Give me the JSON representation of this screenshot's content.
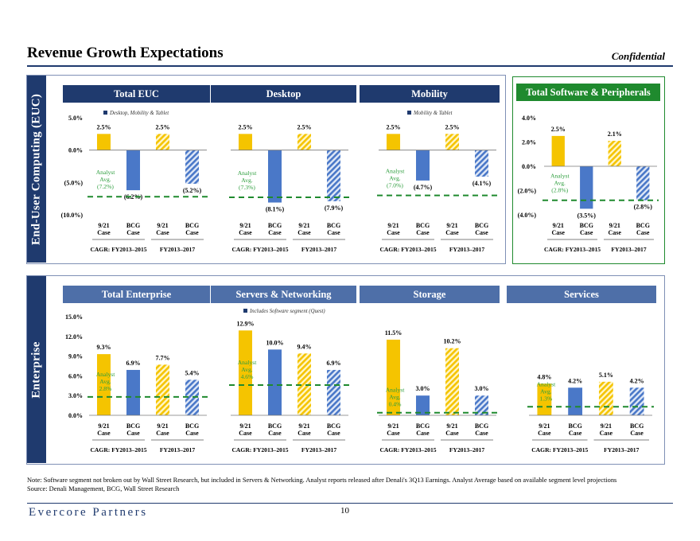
{
  "header": {
    "title": "Revenue Growth Expectations",
    "confidential": "Confidential"
  },
  "sections": {
    "euc_label": "End-User Computing (EUC)",
    "enterprise_label": "Enterprise"
  },
  "colors": {
    "navy": "#1f3a6e",
    "yellow": "#f5c400",
    "blue": "#4a78c8",
    "green": "#1f8a2e",
    "analyst_text": "#2e9e3e"
  },
  "chart_data": [
    {
      "type": "bar",
      "title": "Total EUC",
      "legend": "Desktop, Mobility & Tablet",
      "categories": [
        "9/21 Case",
        "BCG Case",
        "9/21 Case",
        "BCG Case"
      ],
      "groups": [
        "CAGR: FY2013–2015",
        "FY2013–2017"
      ],
      "values": [
        2.5,
        -6.2,
        2.5,
        -5.2
      ],
      "value_labels": [
        "2.5%",
        "(6.2%)",
        "2.5%",
        "(5.2%)"
      ],
      "analyst_avg": -7.2,
      "analyst_label": [
        "Analyst",
        "Avg.",
        "(7.2%)"
      ],
      "ylim": [
        -10,
        5
      ],
      "yticks": [
        5,
        0,
        -5,
        -10
      ],
      "ytick_labels": [
        "5.0%",
        "0.0%",
        "(5.0%)",
        "(10.0%)"
      ]
    },
    {
      "type": "bar",
      "title": "Desktop",
      "legend": "",
      "categories": [
        "9/21 Case",
        "BCG Case",
        "9/21 Case",
        "BCG Case"
      ],
      "groups": [
        "CAGR: FY2013–2015",
        "FY2013–2017"
      ],
      "values": [
        2.5,
        -8.1,
        2.5,
        -7.9
      ],
      "value_labels": [
        "2.5%",
        "(8.1%)",
        "2.5%",
        "(7.9%)"
      ],
      "analyst_avg": -7.3,
      "analyst_label": [
        "Analyst",
        "Avg.",
        "(7.3%)"
      ],
      "ylim": [
        -10,
        5
      ],
      "yticks": [],
      "ytick_labels": []
    },
    {
      "type": "bar",
      "title": "Mobility",
      "legend": "Mobility & Tablet",
      "categories": [
        "9/21 Case",
        "BCG Case",
        "9/21 Case",
        "BCG Case"
      ],
      "groups": [
        "CAGR: FY2013–2015",
        "FY2013–2017"
      ],
      "values": [
        2.5,
        -4.7,
        2.5,
        -4.1
      ],
      "value_labels": [
        "2.5%",
        "(4.7%)",
        "2.5%",
        "(4.1%)"
      ],
      "analyst_avg": -7.0,
      "analyst_label": [
        "Analyst",
        "Avg.",
        "(7.0%)"
      ],
      "ylim": [
        -10,
        5
      ],
      "yticks": [],
      "ytick_labels": []
    },
    {
      "type": "bar",
      "title": "Total Software & Peripherals",
      "legend": "",
      "categories": [
        "9/21 Case",
        "BCG Case",
        "9/21 Case",
        "BCG Case"
      ],
      "groups": [
        "CAGR: FY2013–2015",
        "FY2013–2017"
      ],
      "values": [
        2.5,
        -3.5,
        2.1,
        -2.8
      ],
      "value_labels": [
        "2.5%",
        "(3.5%)",
        "2.1%",
        "(2.8%)"
      ],
      "analyst_avg": -2.8,
      "analyst_label": [
        "Analyst",
        "Avg.",
        "(2.8%)"
      ],
      "ylim": [
        -4,
        4
      ],
      "yticks": [
        4,
        2,
        0,
        -2,
        -4
      ],
      "ytick_labels": [
        "4.0%",
        "2.0%",
        "0.0%",
        "(2.0%)",
        "(4.0%)"
      ]
    },
    {
      "type": "bar",
      "title": "Total Enterprise",
      "legend": "",
      "categories": [
        "9/21 Case",
        "BCG Case",
        "9/21 Case",
        "BCG Case"
      ],
      "groups": [
        "CAGR: FY2013–2015",
        "FY2013–2017"
      ],
      "values": [
        9.3,
        6.9,
        7.7,
        5.4
      ],
      "value_labels": [
        "9.3%",
        "6.9%",
        "7.7%",
        "5.4%"
      ],
      "analyst_avg": 2.8,
      "analyst_label": [
        "Analyst",
        "Avg.",
        "2.8%"
      ],
      "ylim": [
        0,
        15
      ],
      "yticks": [
        15,
        12,
        9,
        6,
        3,
        0
      ],
      "ytick_labels": [
        "15.0%",
        "12.0%",
        "9.0%",
        "6.0%",
        "3.0%",
        "0.0%"
      ]
    },
    {
      "type": "bar",
      "title": "Servers & Networking",
      "legend": "Includes Software segment (Quest)",
      "categories": [
        "9/21 Case",
        "BCG Case",
        "9/21 Case",
        "BCG Case"
      ],
      "groups": [
        "CAGR: FY2013–2015",
        "FY2013–2017"
      ],
      "values": [
        12.9,
        10.0,
        9.4,
        6.9
      ],
      "value_labels": [
        "12.9%",
        "10.0%",
        "9.4%",
        "6.9%"
      ],
      "analyst_avg": 4.6,
      "analyst_label": [
        "Analyst",
        "Avg.",
        "4.6%"
      ],
      "ylim": [
        0,
        15
      ],
      "yticks": [],
      "ytick_labels": []
    },
    {
      "type": "bar",
      "title": "Storage",
      "legend": "",
      "categories": [
        "9/21 Case",
        "BCG Case",
        "9/21 Case",
        "BCG Case"
      ],
      "groups": [
        "CAGR: FY2013–2015",
        "FY2013–2017"
      ],
      "values": [
        11.5,
        3.0,
        10.2,
        3.0
      ],
      "value_labels": [
        "11.5%",
        "3.0%",
        "10.2%",
        "3.0%"
      ],
      "analyst_avg": 0.4,
      "analyst_label": [
        "Analyst",
        "Avg.",
        "0.4%"
      ],
      "ylim": [
        0,
        15
      ],
      "yticks": [],
      "ytick_labels": []
    },
    {
      "type": "bar",
      "title": "Services",
      "legend": "",
      "categories": [
        "9/21 Case",
        "BCG Case",
        "9/21 Case",
        "BCG Case"
      ],
      "groups": [
        "CAGR: FY2013–2015",
        "FY2013–2017"
      ],
      "values": [
        4.8,
        4.2,
        5.1,
        4.2
      ],
      "value_labels": [
        "4.8%",
        "4.2%",
        "5.1%",
        "4.2%"
      ],
      "analyst_avg": 1.3,
      "analyst_label": [
        "Analyst",
        "Avg.",
        "1.3%"
      ],
      "ylim": [
        0,
        15
      ],
      "yticks": [],
      "ytick_labels": []
    }
  ],
  "footer": {
    "note": "Note: Software segment not broken out by Wall Street Research, but included in Servers & Networking. Analyst reports released after Denali's 3Q13 Earnings. Analyst Average based on available segment level projections",
    "source": "Source: Denali Management, BCG, Wall Street Research",
    "logo": "Evercore Partners",
    "page": "10"
  }
}
